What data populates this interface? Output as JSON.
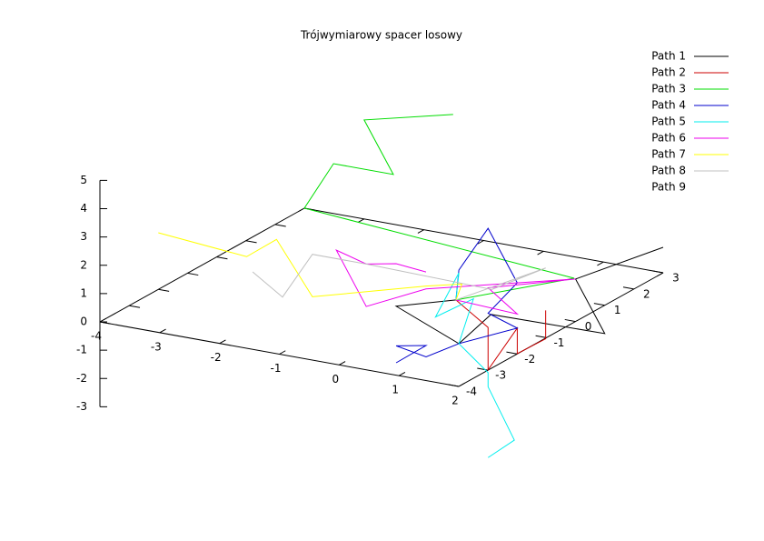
{
  "chart_data": {
    "type": "line3d",
    "title": "Trójwymiarowy spacer losowy",
    "xlim": [
      -4,
      2
    ],
    "xticks": [
      -4,
      -3,
      -2,
      -1,
      0,
      1,
      2
    ],
    "ylim": [
      -4,
      3
    ],
    "yticks": [
      -4,
      -3,
      -2,
      -1,
      0,
      1,
      2,
      3
    ],
    "zlim": [
      -3,
      5
    ],
    "zticks": [
      -3,
      -2,
      -1,
      0,
      1,
      2,
      3,
      4,
      5
    ],
    "series": [
      {
        "name": "Path 1",
        "color": "#000000",
        "x": [
          0,
          -1,
          0,
          0,
          2,
          2,
          2
        ],
        "y": [
          0,
          0,
          0.1,
          1.2,
          1,
          0,
          3
        ],
        "z": [
          0,
          -0.6,
          -1.6,
          -1.2,
          -1,
          1.5,
          0.9
        ]
      },
      {
        "name": "Path 2",
        "color": "#cc0000",
        "x": [
          0,
          0,
          0,
          0,
          0,
          1.5,
          1.5
        ],
        "y": [
          0,
          1.1,
          1.1,
          2.1,
          2.1,
          0,
          0
        ],
        "z": [
          0,
          -1.6,
          -3.1,
          -2.2,
          -3.1,
          -0.8,
          0.2
        ]
      },
      {
        "name": "Path 3",
        "color": "#00dd00",
        "x": [
          0,
          1,
          -4,
          -4,
          -3,
          -3,
          -2
        ],
        "y": [
          0,
          2,
          3,
          4,
          4,
          3,
          4
        ],
        "z": [
          0,
          0,
          0,
          1,
          1,
          3.5,
          3.5
        ]
      },
      {
        "name": "Path 4",
        "color": "#0000cc",
        "x": [
          0,
          0,
          0,
          0,
          0,
          0,
          0,
          -0.5,
          -1,
          -0.5,
          -1
        ],
        "y": [
          0,
          0.1,
          1.1,
          2.1,
          1.1,
          2.1,
          0.1,
          0,
          0,
          0,
          0
        ],
        "z": [
          0,
          1,
          1.9,
          -0.6,
          -1.1,
          -2.2,
          -1.6,
          -2.2,
          -2,
          -1.8,
          -2.6
        ]
      },
      {
        "name": "Path 5",
        "color": "#00eeee",
        "x": [
          0,
          0,
          0,
          0,
          0,
          0,
          0,
          0,
          0
        ],
        "y": [
          0,
          0.1,
          -0.7,
          0.6,
          0.1,
          1.1,
          1.1,
          2,
          1.1
        ],
        "z": [
          0,
          0.9,
          -0.2,
          -0.3,
          -1.6,
          -3.2,
          -3.7,
          -6.1,
          -6.2
        ]
      },
      {
        "name": "Path 6",
        "color": "#ee00ee",
        "x": [
          0,
          0,
          0,
          2,
          -0.5,
          -1.5,
          -2,
          -1.5,
          -1,
          -0.5
        ],
        "y": [
          0,
          2.1,
          1.1,
          0,
          0,
          0,
          0,
          0,
          0,
          0
        ],
        "z": [
          0,
          -1.7,
          -0.2,
          1.5,
          0.2,
          -0.8,
          1,
          0.7,
          0.9,
          0.8
        ]
      },
      {
        "name": "Path 7",
        "color": "#ffff00",
        "x": [
          0,
          0.1,
          -0.5,
          -2.4,
          -3,
          -3.5,
          -4
        ],
        "y": [
          0,
          0,
          0,
          0,
          0,
          0,
          -2
        ],
        "z": [
          0,
          0.6,
          0.3,
          -0.8,
          1,
          0.2,
          2
        ]
      },
      {
        "name": "Path 8",
        "color": "#c0c0c0",
        "x": [
          0,
          1.5,
          0.6,
          -1.5,
          -2.4,
          -2.9,
          -3.4
        ],
        "y": [
          0,
          0,
          0,
          0,
          0,
          0,
          0
        ],
        "z": [
          0,
          1.7,
          0.6,
          0.7,
          0.7,
          -1,
          -0.3
        ]
      },
      {
        "name": "Path 9",
        "color": "#ffffff",
        "x": [],
        "y": [],
        "z": []
      }
    ]
  }
}
